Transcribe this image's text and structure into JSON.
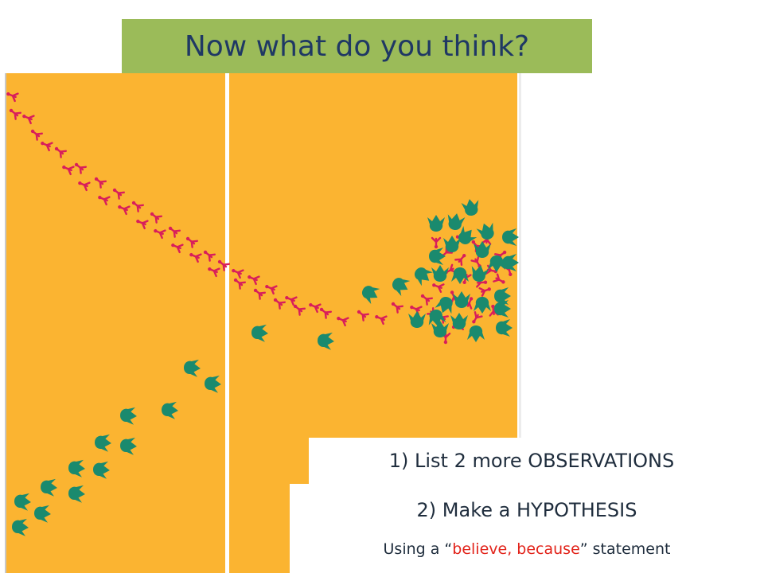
{
  "title": {
    "text": "Now what do you think?",
    "background": "#9bbb59",
    "color": "#1f3864"
  },
  "scene": {
    "ground_color": "#fbb431",
    "small_track_color": "#d81e5b",
    "large_track_color": "#1a8a6e",
    "small_track_icon": "three-toed-bird-footprint",
    "large_track_icon": "three-toed-dinosaur-footprint"
  },
  "instructions": {
    "step1": "1) List 2 more OBSERVATIONS",
    "step2": "2) Make a HYPOTHESIS",
    "hint_prefix": "Using a “",
    "hint_keywords": "believe, because",
    "hint_suffix": "” statement",
    "keyword_color": "#e2231a"
  }
}
